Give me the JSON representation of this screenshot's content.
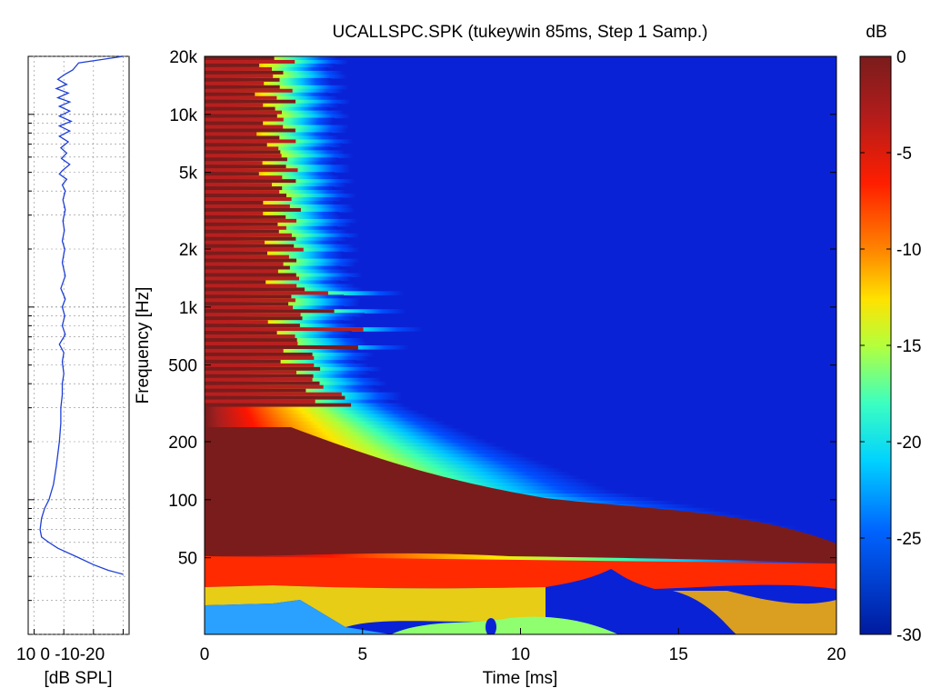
{
  "chart_data": [
    {
      "type": "line",
      "name": "frequency-response",
      "xlabel": "[dB SPL]",
      "ylabel": "",
      "xlim": [
        12,
        -22
      ],
      "x_ticks": [
        10,
        0,
        -10,
        -20
      ],
      "x_tick_labels": [
        "10",
        "0",
        "-10",
        "-20"
      ],
      "x_tick_text": "10  0 -10-20",
      "ylim": [
        20,
        20000
      ],
      "y_scale": "log",
      "grid": true,
      "line_color": "#1f3fd6",
      "series": [
        {
          "name": "SPL",
          "points": [
            [
              -20,
              20000
            ],
            [
              -5,
              18500
            ],
            [
              -3,
              17000
            ],
            [
              0,
              16000
            ],
            [
              2,
              15200
            ],
            [
              -1,
              14300
            ],
            [
              2.5,
              13600
            ],
            [
              -1.5,
              12900
            ],
            [
              2,
              12200
            ],
            [
              -2,
              11600
            ],
            [
              1.5,
              11000
            ],
            [
              -2,
              10400
            ],
            [
              1.5,
              9800
            ],
            [
              -2.5,
              9200
            ],
            [
              1.5,
              8700
            ],
            [
              -2,
              8200
            ],
            [
              1.5,
              7700
            ],
            [
              -1.5,
              7200
            ],
            [
              1,
              6700
            ],
            [
              -1,
              6300
            ],
            [
              0.8,
              5900
            ],
            [
              -2,
              5500
            ],
            [
              0.5,
              5100
            ],
            [
              1.5,
              4900
            ],
            [
              -1,
              4600
            ],
            [
              0.5,
              4300
            ],
            [
              -0.5,
              4000
            ],
            [
              0.3,
              3600
            ],
            [
              -0.5,
              3200
            ],
            [
              0.3,
              2800
            ],
            [
              -0.2,
              2500
            ],
            [
              0.5,
              2200
            ],
            [
              -0.3,
              2000
            ],
            [
              0.5,
              1700
            ],
            [
              -0.5,
              1450
            ],
            [
              1,
              1250
            ],
            [
              -0.5,
              1100
            ],
            [
              0.5,
              1000
            ],
            [
              -0.3,
              900
            ],
            [
              0.5,
              800
            ],
            [
              -0.5,
              720
            ],
            [
              1.5,
              640
            ],
            [
              0,
              580
            ],
            [
              0.5,
              520
            ],
            [
              0,
              450
            ],
            [
              0.5,
              400
            ],
            [
              0.5,
              350
            ],
            [
              1,
              300
            ],
            [
              1,
              250
            ],
            [
              1.5,
              200
            ],
            [
              2.5,
              150
            ],
            [
              3.5,
              120
            ],
            [
              5,
              100
            ],
            [
              6.5,
              90
            ],
            [
              7.5,
              80
            ],
            [
              8,
              70
            ],
            [
              7.5,
              64
            ],
            [
              5,
              60
            ],
            [
              2,
              56
            ],
            [
              -5,
              50
            ],
            [
              -10,
              46
            ],
            [
              -15,
              43
            ],
            [
              -20,
              41
            ]
          ]
        }
      ]
    },
    {
      "type": "heatmap",
      "name": "cumulative-spectral-decay",
      "title": "UCALLSPC.SPK (tukeywin 85ms, Step 1 Samp.)",
      "xlabel": "Time [ms]",
      "ylabel": "Frequency [Hz]",
      "xlim": [
        0,
        20
      ],
      "x_ticks": [
        0,
        5,
        10,
        15,
        20
      ],
      "x_tick_labels": [
        "0",
        "5",
        "10",
        "15",
        "20"
      ],
      "ylim": [
        20,
        20000
      ],
      "y_scale": "log",
      "y_ticks": [
        50,
        100,
        200,
        500,
        1000,
        2000,
        5000,
        10000,
        20000
      ],
      "y_tick_labels": [
        "50",
        "100",
        "200",
        "500",
        "1k",
        "2k",
        "5k",
        "10k",
        "20k"
      ],
      "zlim": [
        -30,
        0
      ],
      "colorbar": {
        "label": "dB",
        "ticks": [
          0,
          -5,
          -10,
          -15,
          -20,
          -25,
          -30
        ],
        "tick_labels": [
          "0",
          "-5",
          "-10",
          "-15",
          "-20",
          "-25",
          "-30"
        ],
        "colormap": "jet"
      },
      "decay_edge_ms": [
        [
          40,
          12.5
        ],
        [
          46,
          20
        ],
        [
          56,
          20
        ],
        [
          70,
          19
        ],
        [
          90,
          16
        ],
        [
          110,
          13
        ],
        [
          150,
          11
        ],
        [
          200,
          9
        ],
        [
          300,
          6.5
        ],
        [
          400,
          5.5
        ],
        [
          500,
          5.2
        ],
        [
          700,
          4.8
        ],
        [
          1000,
          4.7
        ],
        [
          2000,
          4.6
        ],
        [
          5000,
          4.4
        ],
        [
          10000,
          4.3
        ],
        [
          20000,
          4.2
        ]
      ]
    }
  ]
}
